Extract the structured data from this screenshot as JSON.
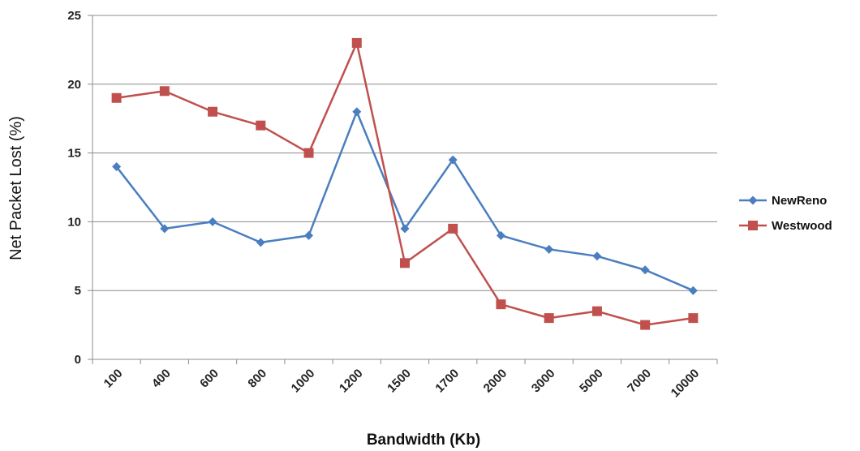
{
  "chart_data": {
    "type": "line",
    "title": "",
    "xlabel": "Bandwidth (Kb)",
    "ylabel": "Net Packet Lost (%)",
    "ylim": [
      0,
      25
    ],
    "yticks": [
      "0",
      "5",
      "10",
      "15",
      "20",
      "25"
    ],
    "grid": "horizontal",
    "legend_position": "right",
    "categories": [
      "100",
      "400",
      "600",
      "800",
      "1000",
      "1200",
      "1500",
      "1700",
      "2000",
      "3000",
      "5000",
      "7000",
      "10000"
    ],
    "series": [
      {
        "name": "NewReno",
        "color": "#4a7ebf",
        "marker": "diamond",
        "values": [
          14,
          9.5,
          10,
          8.5,
          9,
          18,
          9.5,
          14.5,
          9,
          8,
          7.5,
          6.5,
          5
        ]
      },
      {
        "name": "Westwood",
        "color": "#c0504d",
        "marker": "square",
        "values": [
          19,
          19.5,
          18,
          17,
          15,
          23,
          7,
          9.5,
          4,
          3,
          3.5,
          2.5,
          3
        ]
      }
    ]
  }
}
